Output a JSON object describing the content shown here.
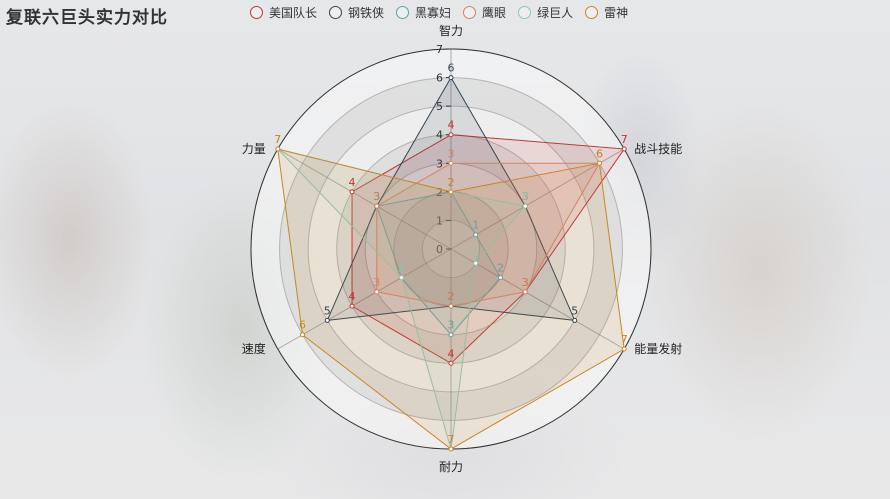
{
  "title": "复联六巨头实力对比",
  "chart_data": {
    "type": "radar",
    "indicators": [
      "智力",
      "战斗技能",
      "能量发射",
      "耐力",
      "速度",
      "力量"
    ],
    "max": 7,
    "ticks": [
      "0",
      "1",
      "2",
      "3",
      "4",
      "5",
      "6",
      "7"
    ],
    "series": [
      {
        "name": "美国队长",
        "color": "#c23531",
        "values": [
          4,
          7,
          3,
          4,
          4,
          4
        ]
      },
      {
        "name": "钢铁侠",
        "color": "#2f4554",
        "values": [
          6,
          3,
          5,
          2,
          5,
          3
        ]
      },
      {
        "name": "黑寡妇",
        "color": "#61a0a8",
        "values": [
          2,
          1,
          2,
          3,
          2,
          3
        ]
      },
      {
        "name": "鹰眼",
        "color": "#d48265",
        "values": [
          3,
          6,
          3,
          2,
          3,
          3
        ]
      },
      {
        "name": "绿巨人",
        "color": "#91c7ae",
        "values": [
          2,
          3,
          1,
          7,
          2,
          7
        ]
      },
      {
        "name": "雷神",
        "color": "#ca8622",
        "values": [
          2,
          6,
          7,
          7,
          6,
          7
        ]
      }
    ],
    "legend_position": "top-center"
  }
}
